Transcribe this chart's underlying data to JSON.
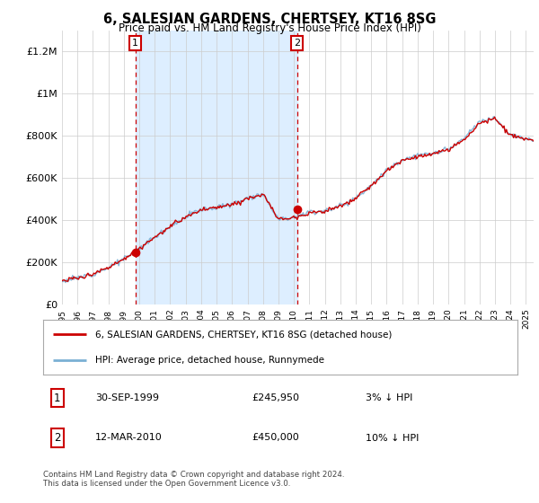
{
  "title": "6, SALESIAN GARDENS, CHERTSEY, KT16 8SG",
  "subtitle": "Price paid vs. HM Land Registry's House Price Index (HPI)",
  "legend_line1": "6, SALESIAN GARDENS, CHERTSEY, KT16 8SG (detached house)",
  "legend_line2": "HPI: Average price, detached house, Runnymede",
  "annotation1_date": "30-SEP-1999",
  "annotation1_price": "£245,950",
  "annotation1_hpi": "3% ↓ HPI",
  "annotation2_date": "12-MAR-2010",
  "annotation2_price": "£450,000",
  "annotation2_hpi": "10% ↓ HPI",
  "footer": "Contains HM Land Registry data © Crown copyright and database right 2024.\nThis data is licensed under the Open Government Licence v3.0.",
  "price_color": "#cc0000",
  "hpi_color": "#7ab0d4",
  "shaded_region_color": "#ddeeff",
  "vline_color": "#cc0000",
  "background_color": "#ffffff",
  "ylim": [
    0,
    1300000
  ],
  "yticks": [
    0,
    200000,
    400000,
    600000,
    800000,
    1000000,
    1200000
  ],
  "ytick_labels": [
    "£0",
    "£200K",
    "£400K",
    "£600K",
    "£800K",
    "£1M",
    "£1.2M"
  ],
  "purchase1_year": 1999.75,
  "purchase1_value": 245950,
  "purchase2_year": 2010.2,
  "purchase2_value": 450000
}
